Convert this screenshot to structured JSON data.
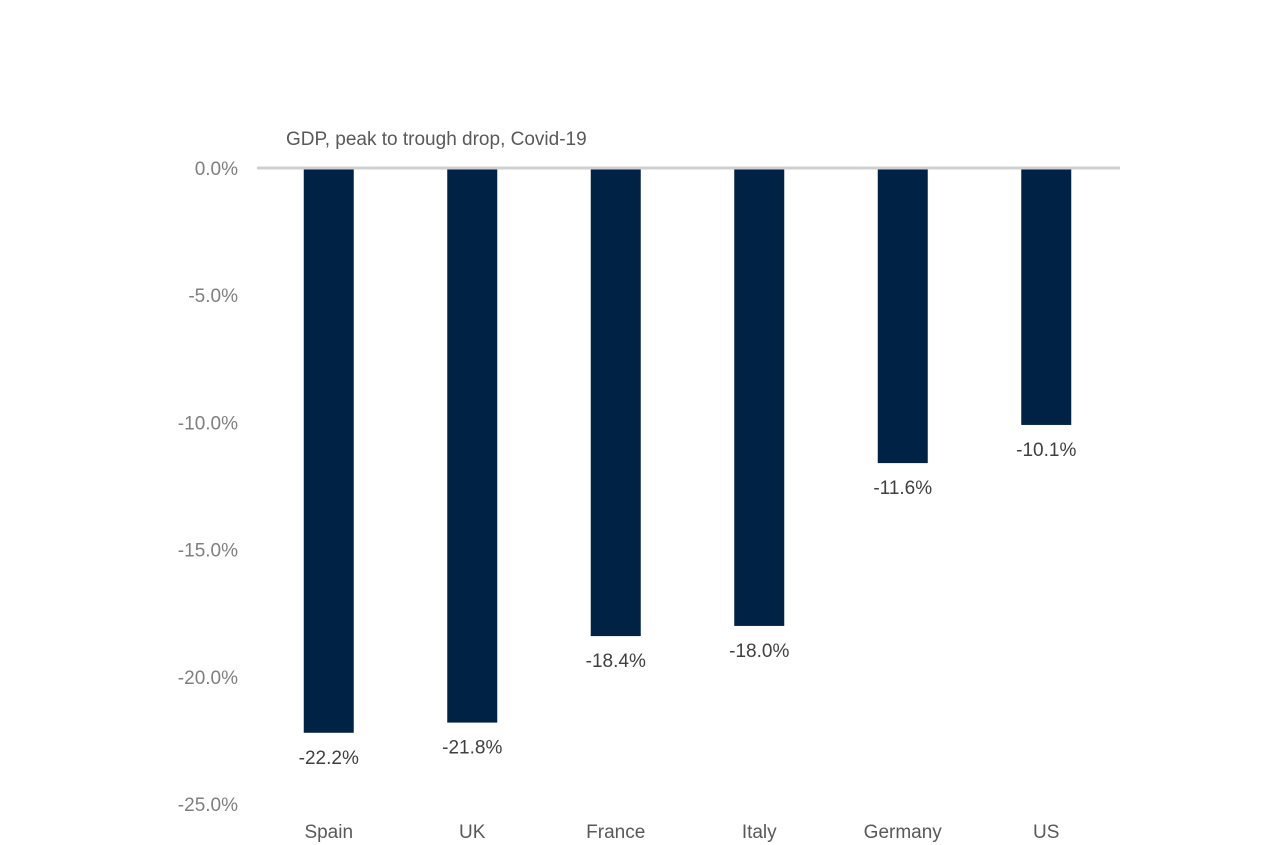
{
  "chart_data": {
    "type": "bar",
    "title": "GDP, peak to trough drop, Covid-19",
    "xlabel": "",
    "ylabel": "",
    "categories": [
      "Spain",
      "UK",
      "France",
      "Italy",
      "Germany",
      "US"
    ],
    "values": [
      -22.2,
      -21.8,
      -18.4,
      -18.0,
      -11.6,
      -10.1
    ],
    "value_labels": [
      "-22.2%",
      "-21.8%",
      "-18.4%",
      "-18.0%",
      "-11.6%",
      "-10.1%"
    ],
    "ylim": [
      -25,
      0
    ],
    "yticks": [
      0,
      -5,
      -10,
      -15,
      -20,
      -25
    ],
    "ytick_labels": [
      "0.0%",
      "-5.0%",
      "-10.0%",
      "-15.0%",
      "-20.0%",
      "-25.0%"
    ],
    "grid": false,
    "legend": "none",
    "bar_color": "#002244",
    "zero_line_color": "#d0d0d0"
  }
}
